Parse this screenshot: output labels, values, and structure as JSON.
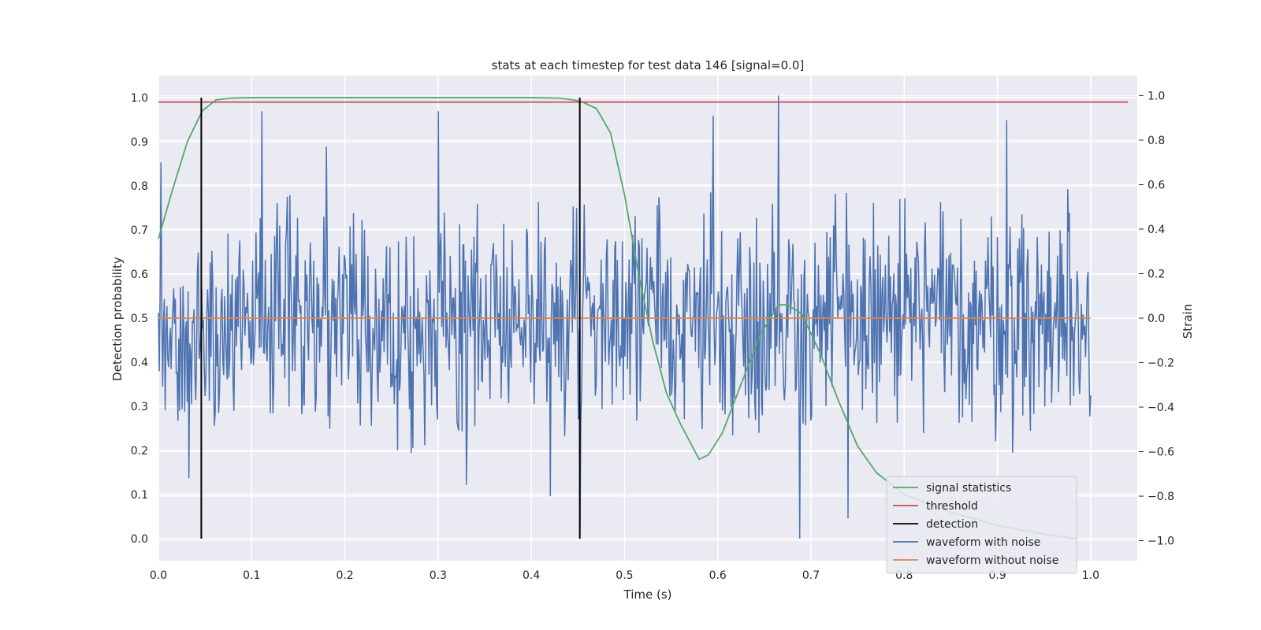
{
  "chart_data": {
    "type": "line",
    "title": "stats at each timestep for test data 146 [signal=0.0]",
    "xlabel": "Time (s)",
    "ylabel": "Detection probability",
    "y2label": "Strain",
    "xlim": [
      0.0,
      1.05
    ],
    "ylim": [
      -0.05,
      1.05
    ],
    "y2lim": [
      -1.09,
      1.09
    ],
    "xticks": [
      "0.0",
      "0.1",
      "0.2",
      "0.3",
      "0.4",
      "0.5",
      "0.6",
      "0.7",
      "0.8",
      "0.9",
      "1.0"
    ],
    "yticks": [
      "0.0",
      "0.1",
      "0.2",
      "0.3",
      "0.4",
      "0.5",
      "0.6",
      "0.7",
      "0.8",
      "0.9",
      "1.0"
    ],
    "y2ticks": [
      "−1.0",
      "−0.8",
      "−0.6",
      "−0.4",
      "−0.2",
      "0.0",
      "0.2",
      "0.4",
      "0.6",
      "0.8",
      "1.0"
    ],
    "grid": true,
    "legend_position": "lower right",
    "series": [
      {
        "name": "signal statistics",
        "axis": "left",
        "color": "#55a868",
        "x": [
          0.0,
          0.015,
          0.031,
          0.047,
          0.062,
          0.078,
          0.094,
          0.2,
          0.3,
          0.4,
          0.43,
          0.445,
          0.455,
          0.47,
          0.485,
          0.5,
          0.515,
          0.53,
          0.545,
          0.56,
          0.58,
          0.59,
          0.605,
          0.625,
          0.645,
          0.665,
          0.675,
          0.69,
          0.71,
          0.73,
          0.75,
          0.77,
          0.8,
          0.85,
          0.9,
          0.95,
          0.985
        ],
        "values": [
          0.68,
          0.79,
          0.9,
          0.97,
          0.995,
          0.999,
          1.0,
          1.0,
          1.0,
          1.0,
          0.999,
          0.995,
          0.99,
          0.975,
          0.92,
          0.78,
          0.6,
          0.45,
          0.33,
          0.26,
          0.18,
          0.19,
          0.24,
          0.35,
          0.46,
          0.53,
          0.53,
          0.51,
          0.42,
          0.31,
          0.21,
          0.15,
          0.1,
          0.06,
          0.03,
          0.01,
          0.0
        ]
      },
      {
        "name": "threshold",
        "axis": "left",
        "color": "#c44e52",
        "x": [
          0.0,
          1.04
        ],
        "values": [
          0.99,
          0.99
        ]
      },
      {
        "name": "detection",
        "axis": "left",
        "color": "#000000",
        "x": [
          0.046,
          0.452
        ],
        "values": [
          1.0,
          1.0
        ]
      },
      {
        "name": "waveform with noise",
        "axis": "right",
        "color": "#4c72b0",
        "x_start": 0.0,
        "x_end": 1.0,
        "amplitude": 0.32,
        "spikes": [
          {
            "x": 0.003,
            "value": 0.7
          },
          {
            "x": 0.033,
            "value": -0.72
          },
          {
            "x": 0.111,
            "value": 0.93
          },
          {
            "x": 0.18,
            "value": 0.77
          },
          {
            "x": 0.3,
            "value": 0.93
          },
          {
            "x": 0.33,
            "value": -0.75
          },
          {
            "x": 0.42,
            "value": -0.8
          },
          {
            "x": 0.452,
            "value": -0.97
          },
          {
            "x": 0.595,
            "value": 0.91
          },
          {
            "x": 0.665,
            "value": 1.0
          },
          {
            "x": 0.688,
            "value": -0.99
          },
          {
            "x": 0.74,
            "value": -0.9
          },
          {
            "x": 0.91,
            "value": 0.89
          },
          {
            "x": 0.975,
            "value": 0.58
          }
        ]
      },
      {
        "name": "waveform without noise",
        "axis": "right",
        "color": "#dd8452",
        "x": [
          0.0,
          1.0
        ],
        "values": [
          0.0,
          0.0
        ]
      }
    ]
  }
}
